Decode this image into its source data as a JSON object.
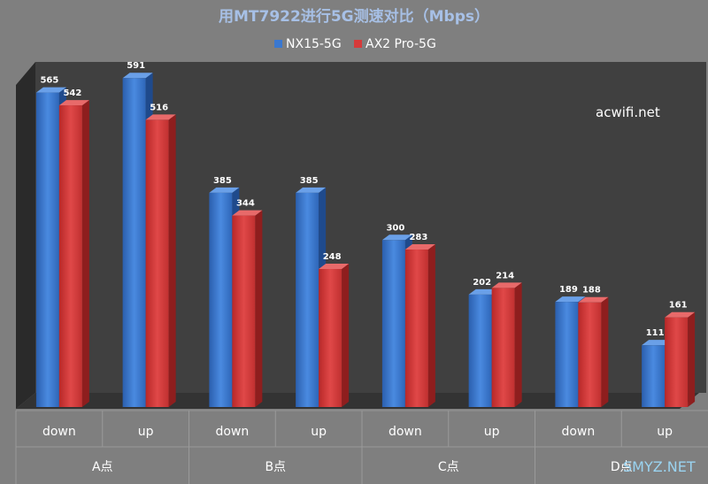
{
  "chart_data": {
    "type": "bar",
    "title": "用MT7922进行5G测速对比（Mbps）",
    "categories": [
      "down",
      "up",
      "down",
      "up",
      "down",
      "up",
      "down",
      "up"
    ],
    "groups": [
      "A点",
      "B点",
      "C点",
      "D点"
    ],
    "series": [
      {
        "name": "NX15-5G",
        "color": "#3a78d0",
        "values": [
          565,
          591,
          385,
          385,
          300,
          202,
          189,
          111
        ]
      },
      {
        "name": "AX2 Pro-5G",
        "color": "#d63a3a",
        "values": [
          542,
          516,
          344,
          248,
          283,
          214,
          188,
          161
        ]
      }
    ],
    "ylim": [
      0,
      620
    ],
    "grid": false,
    "legend": "top",
    "three_d": true
  },
  "watermarks": [
    "acwifi.net",
    "SMYZ.NET"
  ]
}
